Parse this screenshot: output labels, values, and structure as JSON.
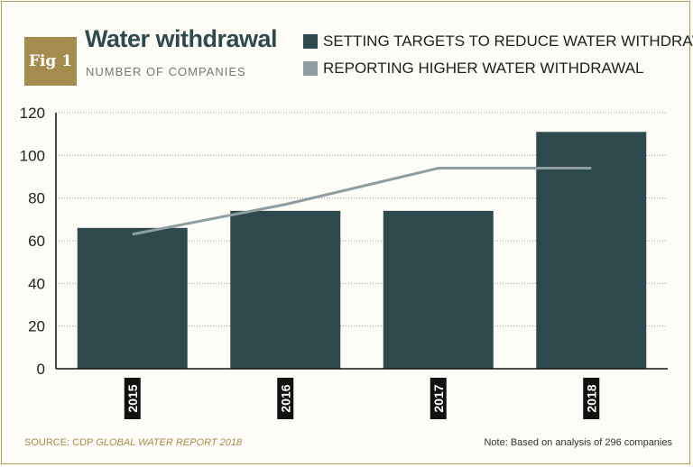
{
  "figure": {
    "badge": "Fig 1",
    "title": "Water withdrawal",
    "subtitle": "NUMBER OF COMPANIES",
    "source_prefix": "SOURCE: CDP ",
    "source_title": "GLOBAL WATER REPORT 2018",
    "note": "Note: Based on analysis of 296 companies"
  },
  "colors": {
    "bar": "#2e4a4c",
    "line": "#8e9ea0",
    "badge": "#a68b4f",
    "year_label_bg": "#111111"
  },
  "chart_data": {
    "type": "bar",
    "title": "Water withdrawal",
    "subtitle": "NUMBER OF COMPANIES",
    "categories": [
      "2015",
      "2016",
      "2017",
      "2018"
    ],
    "series": [
      {
        "name": "SETTING TARGETS TO REDUCE WATER WITHDRAWAL",
        "type": "bar",
        "values": [
          66,
          74,
          74,
          111
        ]
      },
      {
        "name": "REPORTING HIGHER WATER WITHDRAWAL",
        "type": "line",
        "values": [
          63,
          77,
          94,
          94
        ]
      }
    ],
    "ylim": [
      0,
      120
    ],
    "yticks": [
      0,
      20,
      40,
      60,
      80,
      100,
      120
    ],
    "grid": true,
    "legend_position": "top"
  }
}
